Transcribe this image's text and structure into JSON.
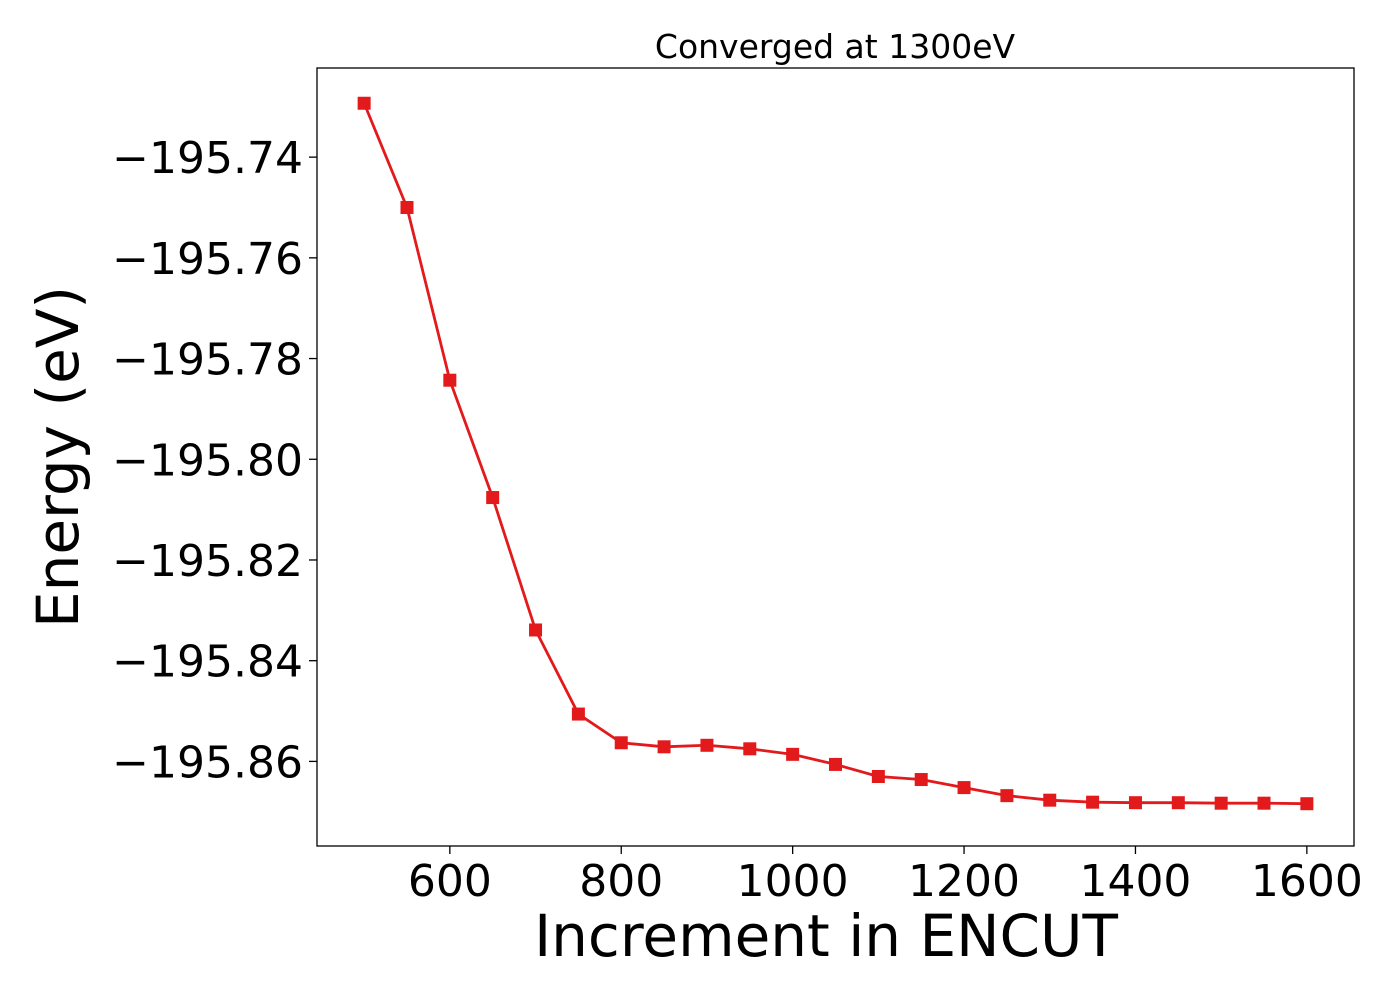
{
  "chart_data": {
    "type": "line",
    "title": "Converged at 1300eV",
    "xlabel": "Increment in ENCUT",
    "ylabel": "Energy (eV)",
    "xlim": [
      445,
      1655
    ],
    "ylim": [
      -195.8768,
      -195.7223
    ],
    "x_ticks": [
      600,
      800,
      1000,
      1200,
      1400,
      1600
    ],
    "x_tick_labels": [
      "600",
      "800",
      "1000",
      "1200",
      "1400",
      "1600"
    ],
    "y_ticks": [
      -195.74,
      -195.76,
      -195.78,
      -195.8,
      -195.82,
      -195.84,
      -195.86
    ],
    "y_tick_labels": [
      "−195.74",
      "−195.76",
      "−195.78",
      "−195.80",
      "−195.82",
      "−195.84",
      "−195.86"
    ],
    "grid": false,
    "series": [
      {
        "color": "#e31a1c",
        "marker": "square",
        "x": [
          500,
          550,
          600,
          650,
          700,
          750,
          800,
          850,
          900,
          950,
          1000,
          1050,
          1100,
          1150,
          1200,
          1250,
          1300,
          1350,
          1400,
          1450,
          1500,
          1550,
          1600
        ],
        "y": [
          -195.7293,
          -195.75,
          -195.7843,
          -195.8076,
          -195.8339,
          -195.8506,
          -195.8563,
          -195.8571,
          -195.8568,
          -195.8575,
          -195.8586,
          -195.8606,
          -195.863,
          -195.8636,
          -195.8652,
          -195.8668,
          -195.8677,
          -195.8681,
          -195.8682,
          -195.8682,
          -195.8683,
          -195.8683,
          -195.8684
        ]
      }
    ]
  }
}
